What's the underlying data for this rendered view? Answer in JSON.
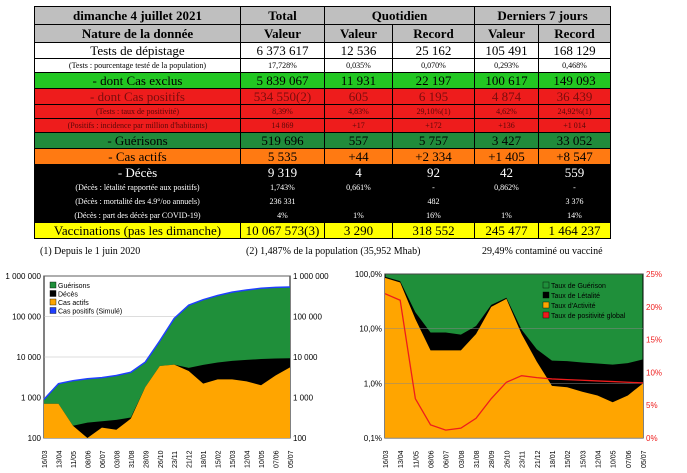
{
  "table": {
    "date": "dimanche 4 juillet 2021",
    "headers": {
      "total": "Total",
      "quotidien": "Quotidien",
      "derniers": "Derniers 7 jours"
    },
    "subheaders": {
      "nature": "Nature de la donnée",
      "valeur": "Valeur",
      "record": "Record"
    },
    "rows": {
      "tests": {
        "label": "Tests de dépistage",
        "total": "6 373 617",
        "qv": "12 536",
        "qr": "25 162",
        "dv": "105 491",
        "dr": "168 129"
      },
      "tests_sub": {
        "label": "(Tests : pourcentage testé de la population)",
        "total": "17,728%",
        "qv": "0,035%",
        "qr": "0,070%",
        "dv": "0,293%",
        "dr": "0,468%"
      },
      "exclus": {
        "label": "- dont Cas exclus",
        "total": "5 839 067",
        "qv": "11 931",
        "qr": "22 197",
        "dv": "100 617",
        "dr": "149 093"
      },
      "positifs": {
        "label": "- dont Cas positifs",
        "total": "534 550(2)",
        "qv": "605",
        "qr": "6 195",
        "dv": "4 874",
        "dr": "36 439"
      },
      "positifs_sub1": {
        "label": "(Tests : taux de positivité)",
        "total": "8,39%",
        "qv": "4,83%",
        "qr": "29,10%(1)",
        "dv": "4,62%",
        "dr": "24,92%(1)"
      },
      "positifs_sub2": {
        "label": "(Positifs : incidence par million d'habitants)",
        "total": "14 869",
        "qv": "+17",
        "qr": "+172",
        "dv": "+136",
        "dr": "+1 014"
      },
      "guerisons": {
        "label": "- Guérisons",
        "total": "519 696",
        "qv": "557",
        "qr": "5 757",
        "dv": "3 427",
        "dr": "33 052"
      },
      "actifs": {
        "label": "- Cas actifs",
        "total": "5 535",
        "qv": "+44",
        "qr": "+2 334",
        "dv": "+1 405",
        "dr": "+8 547"
      },
      "deces": {
        "label": "- Décès",
        "total": "9 319",
        "qv": "4",
        "qr": "92",
        "dv": "42",
        "dr": "559"
      },
      "deces_sub1": {
        "label": "(Décès : létalité rapportée aux positifs)",
        "total": "1,743%",
        "qv": "0,661%",
        "qr": "-",
        "dv": "0,862%",
        "dr": "-"
      },
      "deces_sub2": {
        "label": "(Décès : mortalité des 4.9°/oo annuels)",
        "total": "236 331",
        "qv": "",
        "qr": "482",
        "dv": "",
        "dr": "3 376"
      },
      "deces_sub3": {
        "label": "(Décès : part des décès par COVID-19)",
        "total": "4%",
        "qv": "1%",
        "qr": "16%",
        "dv": "1%",
        "dr": "14%"
      },
      "vacc": {
        "label": "Vaccinations (pas les dimanche)",
        "total": "10 067 573(3)",
        "qv": "3 290",
        "qr": "318 552",
        "dv": "245 477",
        "dr": "1 464 237"
      }
    }
  },
  "notes": {
    "n1": "(1) Depuis le 1 juin 2020",
    "n2": "(2) 1,487% de la population (35,952 Mhab)",
    "n3": "29,49% contaminé ou vacciné"
  },
  "chart_left": {
    "type": "area",
    "yscale": "log",
    "ylim": [
      100,
      1000000
    ],
    "y_ticks_left": [
      "1 000 000",
      "100 000",
      "10 000",
      "1 000",
      "100"
    ],
    "y_ticks_right": [
      "1 000 000",
      "100 000",
      "10 000",
      "1 000",
      "100"
    ],
    "x_ticks": [
      "16/03",
      "13/04",
      "11/05",
      "08/06",
      "06/07",
      "03/08",
      "31/08",
      "28/09",
      "26/10",
      "23/11",
      "21/12",
      "18/01",
      "15/02",
      "15/03",
      "12/04",
      "10/05",
      "07/06",
      "05/07"
    ],
    "legend": [
      "Guérisons",
      "Décès",
      "Cas actifs",
      "Cas positifs (Simulé)"
    ],
    "colors": {
      "Guérisons": "#1f8f3a",
      "Décès": "#000000",
      "Cas actifs": "#ffa500",
      "Cas positifs (Simulé)": "#1f3fff"
    },
    "series": {
      "positifs": [
        900,
        2200,
        2600,
        2900,
        3100,
        3500,
        4200,
        7500,
        25000,
        90000,
        190000,
        260000,
        330000,
        400000,
        450000,
        500000,
        525000,
        534550
      ],
      "guerisons": [
        120,
        1400,
        2400,
        2800,
        2900,
        3300,
        3800,
        5500,
        17000,
        75000,
        175000,
        245000,
        320000,
        385000,
        440000,
        492000,
        518000,
        519696
      ],
      "actifs": [
        700,
        700,
        200,
        100,
        180,
        160,
        300,
        1800,
        6000,
        6500,
        4500,
        2200,
        2800,
        2800,
        2500,
        2000,
        3500,
        5535
      ],
      "deces": [
        100,
        150,
        200,
        240,
        260,
        280,
        320,
        500,
        1500,
        3300,
        5400,
        6400,
        7300,
        8000,
        8500,
        8900,
        9200,
        9319
      ]
    }
  },
  "chart_right": {
    "type": "line",
    "yscale": "log",
    "ylim": [
      0.1,
      100
    ],
    "y_ticks_left": [
      "100,0%",
      "10,0%",
      "1,0%",
      "0,1%"
    ],
    "y_ticks_right": [
      "25%",
      "20%",
      "15%",
      "10%",
      "5%",
      "0%"
    ],
    "y2lim": [
      0,
      25
    ],
    "x_ticks": [
      "16/03",
      "13/04",
      "11/05",
      "08/06",
      "06/07",
      "03/08",
      "31/08",
      "28/09",
      "26/10",
      "23/11",
      "21/12",
      "18/01",
      "15/02",
      "15/03",
      "12/04",
      "10/05",
      "07/06",
      "05/07"
    ],
    "legend": [
      "Taux de Guérison",
      "Taux de Létalité",
      "Taux d'Activité",
      "Taux de positivité global"
    ],
    "colors": {
      "Taux de Guérison": "#1f8f3a",
      "Taux de Létalité": "#000000",
      "Taux d'Activité": "#ffa500",
      "Taux de positivité global": "#ee1c1c"
    },
    "series": {
      "activite": [
        85,
        70,
        15,
        4,
        4,
        4,
        8,
        25,
        35,
        8,
        2.5,
        0.9,
        0.85,
        0.7,
        0.6,
        0.45,
        0.6,
        1.0
      ],
      "letalite": [
        4,
        4,
        5,
        4.5,
        4.5,
        3.8,
        3.2,
        2.3,
        1.7,
        1.6,
        1.7,
        1.7,
        1.7,
        1.7,
        1.7,
        1.75,
        1.74,
        1.743
      ],
      "positivite": [
        22,
        21,
        6,
        2,
        1.2,
        1.5,
        3,
        6,
        8.5,
        9.5,
        9.2,
        9.0,
        8.9,
        8.8,
        8.7,
        8.6,
        8.5,
        8.39
      ]
    }
  }
}
